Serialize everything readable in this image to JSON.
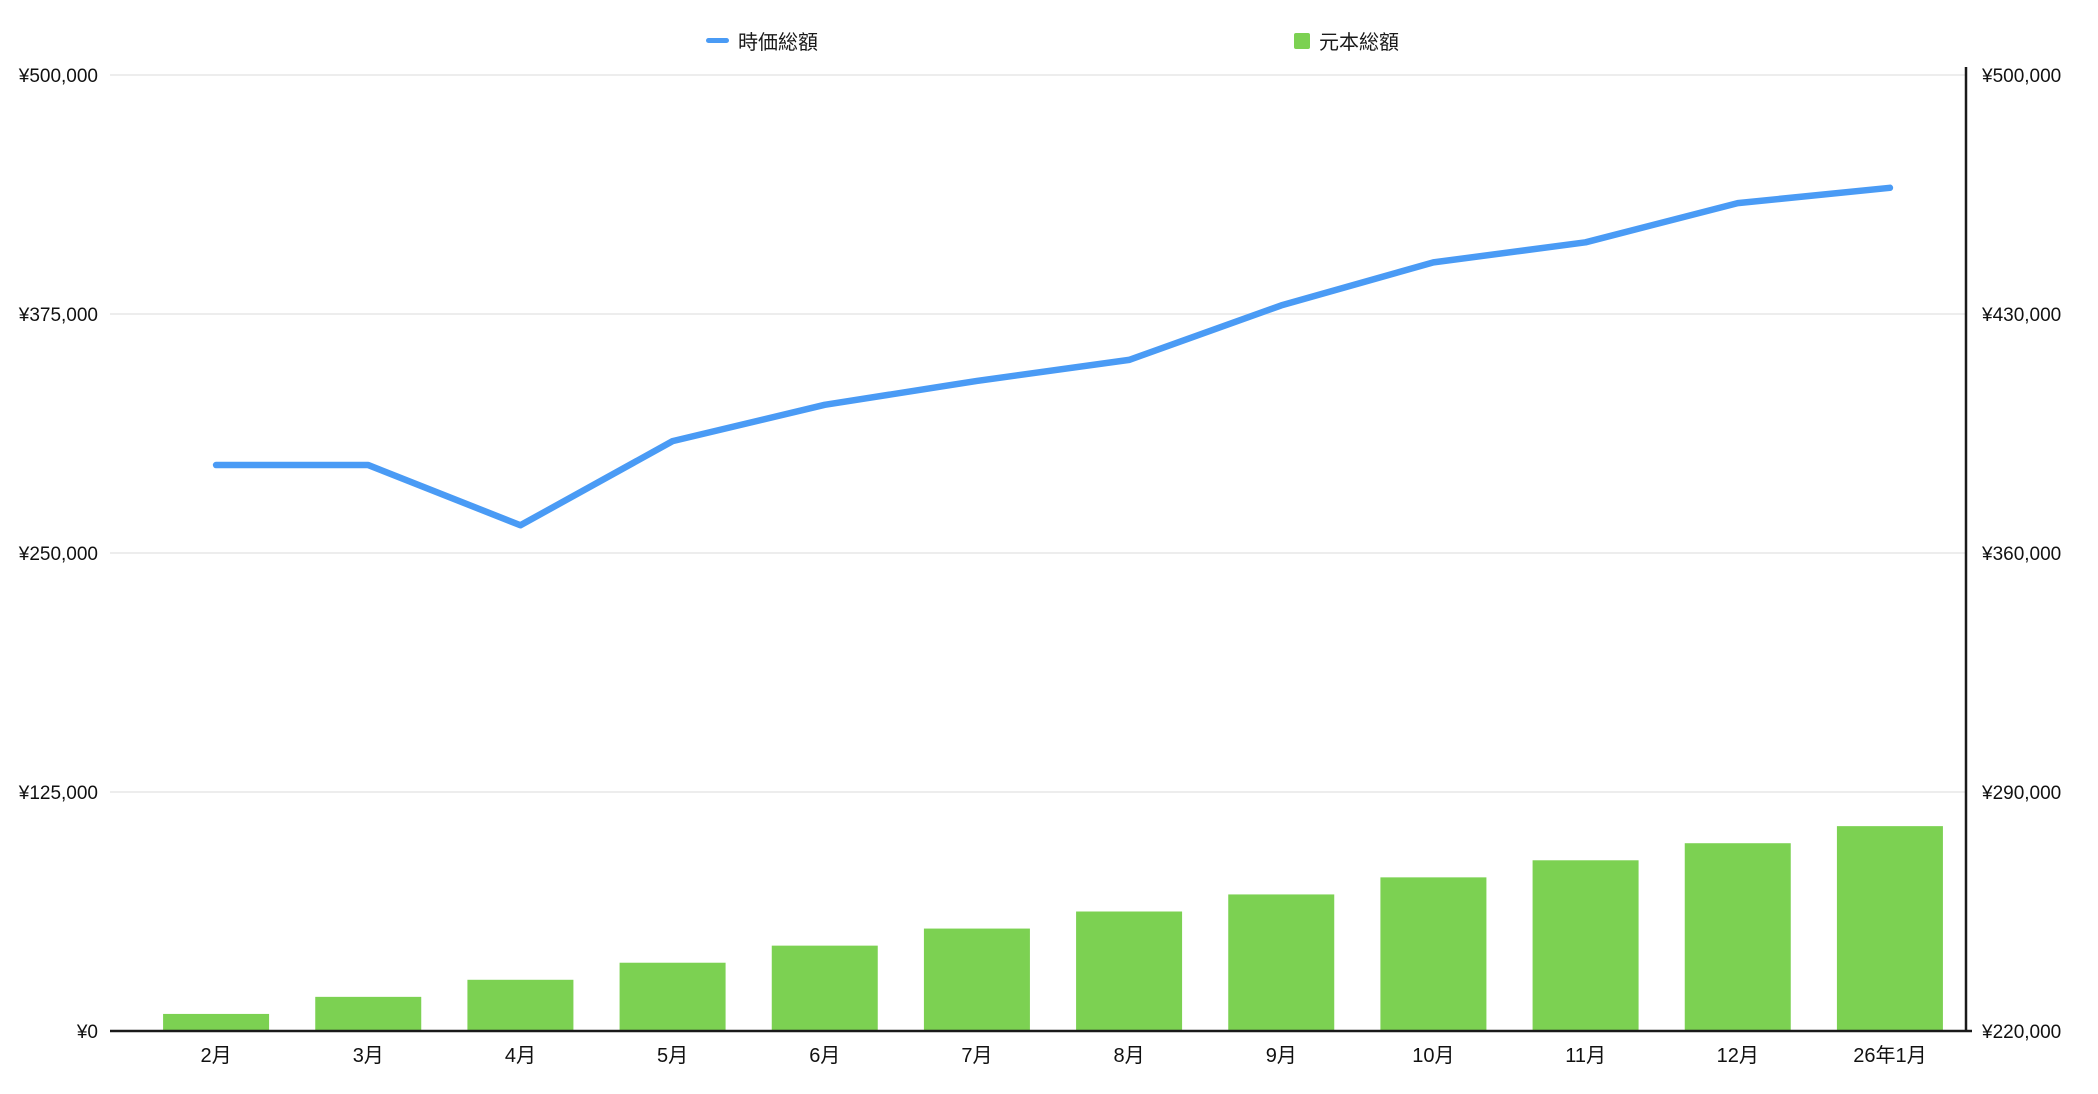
{
  "chart_data": {
    "type": "line-bar-combo",
    "title": "",
    "categories": [
      "2月",
      "3月",
      "4月",
      "5月",
      "6月",
      "7月",
      "8月",
      "9月",
      "10月",
      "11月",
      "12月",
      "26年1月"
    ],
    "series": [
      {
        "name": "時価総額",
        "type": "line",
        "axis": "left",
        "color": "#4A9BF5",
        "values": [
          296000,
          296000,
          264500,
          308500,
          327500,
          340000,
          351000,
          379500,
          402000,
          412500,
          433000,
          441000
        ]
      },
      {
        "name": "元本総額",
        "type": "bar",
        "axis": "right",
        "color": "#7CD152",
        "values": [
          225000,
          230000,
          235000,
          240000,
          245000,
          250000,
          255000,
          260000,
          265000,
          270000,
          275000,
          280000
        ]
      }
    ],
    "left_axis": {
      "min": 0,
      "max": 500000,
      "tick_labels": [
        "¥0",
        "¥125,000",
        "¥250,000",
        "¥375,000",
        "¥500,000"
      ]
    },
    "right_axis": {
      "min": 220000,
      "max": 500000,
      "tick_labels": [
        "¥220,000",
        "¥290,000",
        "¥360,000",
        "¥430,000",
        "¥500,000"
      ]
    },
    "grid": true,
    "legend_position": "top",
    "colors": {
      "grid_line": "#e7e7e7",
      "axis_line": "#1a1a1a",
      "label_text": "#111111"
    }
  }
}
